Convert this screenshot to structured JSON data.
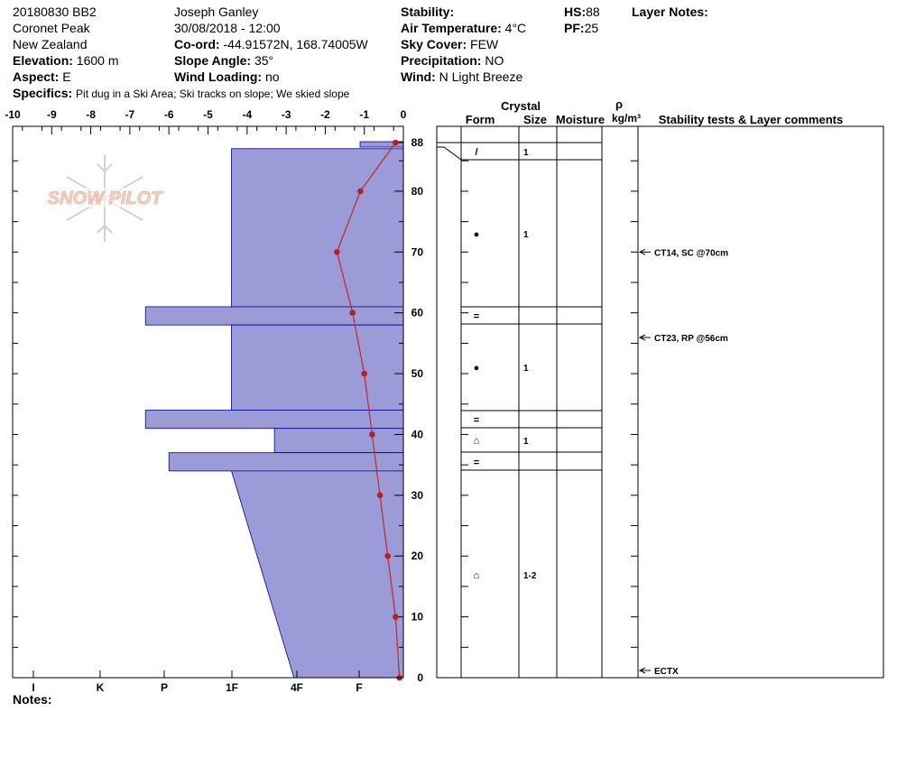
{
  "header": {
    "pit_id": "20180830 BB2",
    "location": "Coronet Peak",
    "country": "New Zealand",
    "elevation_label": "Elevation:",
    "elevation": "1600 m",
    "aspect_label": "Aspect:",
    "aspect": "E",
    "specifics_label": "Specifics:",
    "specifics": "Pit dug in a Ski Area; Ski tracks on slope; We skied slope",
    "observer": "Joseph Ganley",
    "datetime": "30/08/2018 - 12:00",
    "coord_label": "Co-ord:",
    "coord": "-44.91572N, 168.74005W",
    "slope_label": "Slope Angle:",
    "slope": "35°",
    "wind_loading_label": "Wind Loading:",
    "wind_loading": "no",
    "stability_label": "Stability:",
    "stability": "",
    "air_temp_label": "Air Temperature:",
    "air_temp": "4°C",
    "sky_label": "Sky Cover:",
    "sky": "FEW",
    "precip_label": "Precipitation:",
    "precip": "NO",
    "wind_label": "Wind:",
    "wind": "N Light Breeze",
    "hs_label": "HS:",
    "hs": "88",
    "pf_label": "PF:",
    "pf": "25",
    "layer_notes_label": "Layer Notes:"
  },
  "notes_label": "Notes:",
  "watermark": "SNOW PILOT",
  "colors": {
    "hardness_fill": "#9b9bd7",
    "hardness_stroke": "#00008b",
    "temp_line": "#c0262b",
    "temp_point": "#b22222"
  },
  "table_headers": {
    "crystal": "Crystal",
    "form": "Form",
    "size": "Size",
    "moisture": "Moisture",
    "rho": "ρ",
    "density_unit": "kg/m³",
    "comments": "Stability tests & Layer comments"
  },
  "chart_data": {
    "type": "snow_profile",
    "height_axis": {
      "range": [
        0,
        88
      ],
      "ticks": [
        0,
        10,
        20,
        30,
        40,
        50,
        60,
        70,
        80,
        88
      ]
    },
    "temperature_axis": {
      "range": [
        -10,
        0
      ],
      "ticks": [
        "-10",
        "-9",
        "-8",
        "-7",
        "-6",
        "-5",
        "-4",
        "-3",
        "-2",
        "-1",
        "0"
      ]
    },
    "hardness_axis": {
      "ticks": [
        "I",
        "K",
        "P",
        "1F",
        "4F",
        "F"
      ]
    },
    "temperature_profile": [
      {
        "height": 88,
        "temp": -0.2
      },
      {
        "height": 80,
        "temp": -1.1
      },
      {
        "height": 70,
        "temp": -1.7
      },
      {
        "height": 60,
        "temp": -1.3
      },
      {
        "height": 50,
        "temp": -1.0
      },
      {
        "height": 40,
        "temp": -0.8
      },
      {
        "height": 30,
        "temp": -0.6
      },
      {
        "height": 20,
        "temp": -0.4
      },
      {
        "height": 10,
        "temp": -0.2
      },
      {
        "height": 0,
        "temp": -0.1
      }
    ],
    "hardness_layers": [
      {
        "bottom": 88,
        "top": 88,
        "hardness": -0.3
      },
      {
        "bottom": 58,
        "top": 87,
        "hardness": -4.4
      },
      {
        "bottom": 58,
        "top": 61,
        "hardness": -6.6
      },
      {
        "bottom": 44,
        "top": 58,
        "hardness": -4.4
      },
      {
        "bottom": 41,
        "top": 44,
        "hardness": -6.6
      },
      {
        "bottom": 37,
        "top": 41,
        "hardness": -3.3
      },
      {
        "bottom": 34,
        "top": 37,
        "hardness": -6.0
      },
      {
        "bottom": 0,
        "top": 34,
        "hardness": -4.4,
        "hardness_bottom": -2.8
      }
    ],
    "strata": [
      {
        "top": 88,
        "bottom": 87,
        "form": "",
        "size": ""
      },
      {
        "top": 87,
        "bottom": 85,
        "form": "/",
        "size": "1"
      },
      {
        "top": 85,
        "bottom": 61,
        "form": "●",
        "size": "1"
      },
      {
        "top": 61,
        "bottom": 58,
        "form": "=",
        "size": ""
      },
      {
        "top": 58,
        "bottom": 44,
        "form": "●",
        "size": "1"
      },
      {
        "top": 44,
        "bottom": 41,
        "form": "=",
        "size": ""
      },
      {
        "top": 41,
        "bottom": 37,
        "form": "⌂",
        "size": "1"
      },
      {
        "top": 37,
        "bottom": 34,
        "form": "=",
        "size": ""
      },
      {
        "top": 34,
        "bottom": 0,
        "form": "⌂",
        "size": "1-2"
      }
    ],
    "stability_tests": [
      {
        "height": 70,
        "text": "CT14, SC @70cm"
      },
      {
        "height": 56,
        "text": "CT23, RP @56cm"
      },
      {
        "height": 0,
        "text": "ECTX"
      }
    ]
  }
}
